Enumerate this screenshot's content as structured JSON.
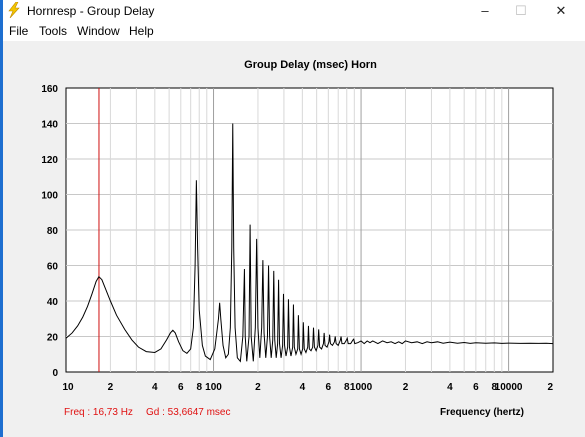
{
  "window": {
    "title": "Hornresp - Group Delay",
    "minimize_glyph": "–",
    "maximize_glyph": "☐",
    "close_glyph": "✕",
    "accent_color": "#1e6fd0"
  },
  "menu": {
    "items": [
      "File",
      "Tools",
      "Window",
      "Help"
    ]
  },
  "status": {
    "freq_text": "Freq : 16,73 Hz",
    "gd_text": "Gd : 53,6647 msec",
    "color": "#e01010"
  },
  "chart_data": {
    "type": "line",
    "title": "Group Delay (msec)    Horn",
    "xlabel": "Frequency (hertz)",
    "ylabel": "",
    "x_scale": "log",
    "xlim": [
      10,
      20000
    ],
    "ylim": [
      0,
      160
    ],
    "y_ticks": [
      0,
      20,
      40,
      60,
      80,
      100,
      120,
      140,
      160
    ],
    "x_tick_labels": [
      {
        "value": 10,
        "label": "10"
      },
      {
        "value": 20,
        "label": "2"
      },
      {
        "value": 40,
        "label": "4"
      },
      {
        "value": 60,
        "label": "6"
      },
      {
        "value": 80,
        "label": "8"
      },
      {
        "value": 100,
        "label": "100"
      },
      {
        "value": 200,
        "label": "2"
      },
      {
        "value": 400,
        "label": "4"
      },
      {
        "value": 600,
        "label": "6"
      },
      {
        "value": 800,
        "label": "8"
      },
      {
        "value": 1000,
        "label": "1000"
      },
      {
        "value": 2000,
        "label": "2"
      },
      {
        "value": 4000,
        "label": "4"
      },
      {
        "value": 6000,
        "label": "6"
      },
      {
        "value": 8000,
        "label": "8"
      },
      {
        "value": 10000,
        "label": "10000"
      },
      {
        "value": 20000,
        "label": "2"
      }
    ],
    "grid": true,
    "cursor": {
      "x": 16.73,
      "color": "#d01010"
    },
    "series": [
      {
        "color": "#000000",
        "points": [
          [
            10,
            19
          ],
          [
            11,
            22
          ],
          [
            12,
            26
          ],
          [
            13,
            31
          ],
          [
            14,
            37
          ],
          [
            15,
            44
          ],
          [
            16,
            51
          ],
          [
            16.7,
            53.7
          ],
          [
            17.5,
            52
          ],
          [
            18.5,
            47
          ],
          [
            20,
            40
          ],
          [
            22,
            32
          ],
          [
            25,
            24
          ],
          [
            28,
            18
          ],
          [
            31,
            14
          ],
          [
            35,
            11.5
          ],
          [
            40,
            11
          ],
          [
            44,
            13
          ],
          [
            48,
            18
          ],
          [
            51,
            22
          ],
          [
            53,
            23.5
          ],
          [
            55,
            22
          ],
          [
            58,
            17
          ],
          [
            62,
            12
          ],
          [
            66,
            10.5
          ],
          [
            70,
            13
          ],
          [
            73,
            25
          ],
          [
            75,
            60
          ],
          [
            76.5,
            108
          ],
          [
            78,
            70
          ],
          [
            80,
            35
          ],
          [
            84,
            15
          ],
          [
            88,
            9
          ],
          [
            95,
            7
          ],
          [
            102,
            13
          ],
          [
            108,
            30
          ],
          [
            110,
            39
          ],
          [
            112,
            30
          ],
          [
            116,
            15
          ],
          [
            121,
            8
          ],
          [
            126,
            10
          ],
          [
            130,
            25
          ],
          [
            133,
            70
          ],
          [
            135,
            140
          ],
          [
            137,
            70
          ],
          [
            140,
            25
          ],
          [
            145,
            8
          ],
          [
            152,
            6
          ],
          [
            158,
            20
          ],
          [
            162,
            58
          ],
          [
            164,
            20
          ],
          [
            168,
            6
          ],
          [
            174,
            20
          ],
          [
            177,
            83
          ],
          [
            180,
            20
          ],
          [
            186,
            6
          ],
          [
            192,
            25
          ],
          [
            196,
            75
          ],
          [
            200,
            25
          ],
          [
            206,
            8
          ],
          [
            212,
            25
          ],
          [
            216,
            63
          ],
          [
            220,
            22
          ],
          [
            226,
            8
          ],
          [
            232,
            20
          ],
          [
            236,
            60
          ],
          [
            240,
            20
          ],
          [
            246,
            8
          ],
          [
            252,
            18
          ],
          [
            256,
            57
          ],
          [
            260,
            18
          ],
          [
            266,
            8
          ],
          [
            272,
            16
          ],
          [
            276,
            52
          ],
          [
            280,
            16
          ],
          [
            287,
            8
          ],
          [
            294,
            15
          ],
          [
            298,
            44
          ],
          [
            303,
            15
          ],
          [
            310,
            9
          ],
          [
            318,
            14
          ],
          [
            322,
            41
          ],
          [
            327,
            14
          ],
          [
            335,
            9
          ],
          [
            344,
            14
          ],
          [
            348,
            38
          ],
          [
            353,
            14
          ],
          [
            362,
            10
          ],
          [
            372,
            13
          ],
          [
            376,
            32
          ],
          [
            382,
            13
          ],
          [
            392,
            10
          ],
          [
            402,
            13
          ],
          [
            406,
            28
          ],
          [
            412,
            13
          ],
          [
            423,
            11
          ],
          [
            435,
            14
          ],
          [
            440,
            26
          ],
          [
            446,
            13
          ],
          [
            458,
            12
          ],
          [
            470,
            14
          ],
          [
            476,
            25
          ],
          [
            483,
            14
          ],
          [
            496,
            12
          ],
          [
            510,
            15
          ],
          [
            516,
            24
          ],
          [
            524,
            14
          ],
          [
            540,
            13
          ],
          [
            556,
            16
          ],
          [
            562,
            22
          ],
          [
            570,
            15
          ],
          [
            588,
            14
          ],
          [
            606,
            17
          ],
          [
            612,
            21
          ],
          [
            620,
            16
          ],
          [
            640,
            15
          ],
          [
            660,
            17
          ],
          [
            668,
            20
          ],
          [
            678,
            16
          ],
          [
            700,
            15
          ],
          [
            724,
            18
          ],
          [
            732,
            20
          ],
          [
            742,
            16
          ],
          [
            770,
            16
          ],
          [
            796,
            18
          ],
          [
            806,
            19
          ],
          [
            818,
            16
          ],
          [
            850,
            16
          ],
          [
            880,
            18
          ],
          [
            892,
            18.5
          ],
          [
            906,
            16
          ],
          [
            950,
            16.5
          ],
          [
            1000,
            17.5
          ],
          [
            1050,
            16
          ],
          [
            1100,
            17.5
          ],
          [
            1150,
            16.5
          ],
          [
            1200,
            17.5
          ],
          [
            1300,
            16
          ],
          [
            1400,
            17.5
          ],
          [
            1500,
            16.5
          ],
          [
            1600,
            17
          ],
          [
            1700,
            16
          ],
          [
            1800,
            17
          ],
          [
            1900,
            16
          ],
          [
            2000,
            17.5
          ],
          [
            2200,
            16.5
          ],
          [
            2400,
            17
          ],
          [
            2600,
            16
          ],
          [
            2800,
            17
          ],
          [
            3000,
            16.5
          ],
          [
            3300,
            17
          ],
          [
            3600,
            16.2
          ],
          [
            4000,
            16.8
          ],
          [
            4500,
            16.2
          ],
          [
            5000,
            16.6
          ],
          [
            5500,
            16.1
          ],
          [
            6000,
            16.5
          ],
          [
            7000,
            16.2
          ],
          [
            8000,
            16.4
          ],
          [
            9000,
            16.1
          ],
          [
            10000,
            16.3
          ],
          [
            12000,
            16.1
          ],
          [
            14000,
            16.2
          ],
          [
            16000,
            16.1
          ],
          [
            18000,
            16.2
          ],
          [
            20000,
            16
          ]
        ]
      }
    ]
  }
}
